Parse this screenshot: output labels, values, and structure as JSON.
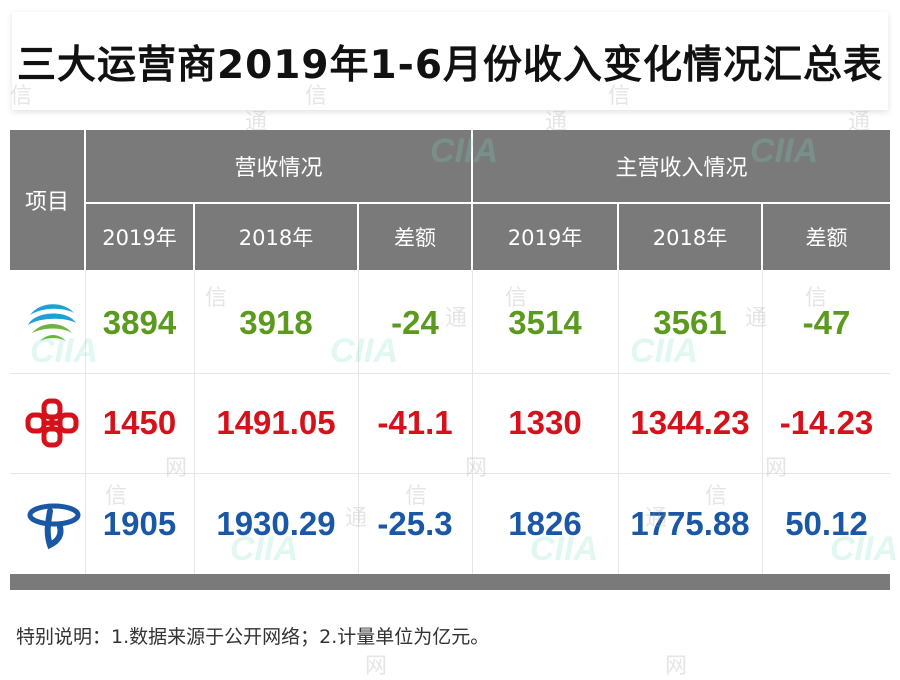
{
  "title": "三大运营商2019年1-6月份收入变化情况汇总表",
  "header": {
    "item": "项目",
    "group_revenue": "营收情况",
    "group_main": "主营收入情况",
    "years": [
      "2019年",
      "2018年",
      "差额",
      "2019年",
      "2018年",
      "差额"
    ]
  },
  "rows": [
    {
      "logo": "china-mobile-logo",
      "color": "#5b9a1f",
      "values": [
        "3894",
        "3918",
        "-24",
        "3514",
        "3561",
        "-47"
      ]
    },
    {
      "logo": "china-unicom-logo",
      "color": "#d5121b",
      "values": [
        "1450",
        "1491.05",
        "-41.1",
        "1330",
        "1344.23",
        "-14.23"
      ]
    },
    {
      "logo": "china-telecom-logo",
      "color": "#1a57a5",
      "values": [
        "1905",
        "1930.29",
        "-25.3",
        "1826",
        "1775.88",
        "50.12"
      ]
    }
  ],
  "note": "特别说明：1.数据来源于公开网络；2.计量单位为亿元。",
  "watermark": {
    "xin": "信",
    "tong": "通",
    "wang": "网",
    "cii": "CIIA"
  },
  "colors": {
    "header_bg": "#7a7a7a",
    "mobile": "#5b9a1f",
    "unicom": "#d5121b",
    "telecom": "#1a57a5"
  }
}
